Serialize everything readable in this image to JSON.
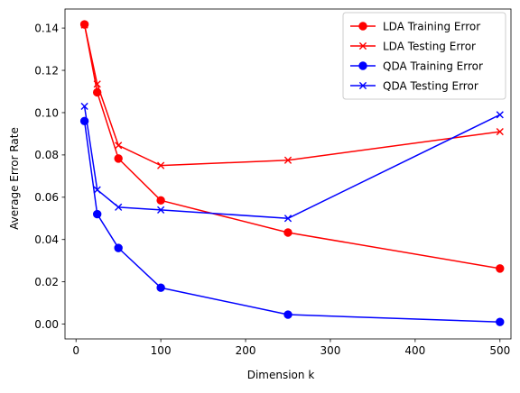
{
  "chart_data": {
    "type": "line",
    "title": "",
    "xlabel": "Dimension k",
    "ylabel": "Average Error Rate",
    "xlim": [
      -13,
      513
    ],
    "ylim": [
      -0.007,
      0.149
    ],
    "x_ticks": [
      0,
      100,
      200,
      300,
      400,
      500
    ],
    "y_ticks": [
      0.0,
      0.02,
      0.04,
      0.06,
      0.08,
      0.1,
      0.12,
      0.14
    ],
    "x_tick_labels": [
      "0",
      "100",
      "200",
      "300",
      "400",
      "500"
    ],
    "y_tick_labels": [
      "0.00",
      "0.02",
      "0.04",
      "0.06",
      "0.08",
      "0.10",
      "0.12",
      "0.14"
    ],
    "grid": false,
    "legend_position": "top-right",
    "x": [
      10,
      25,
      50,
      100,
      250,
      500
    ],
    "series": [
      {
        "name": "LDA Training Error",
        "color": "#ff0000",
        "marker": "circle",
        "values": [
          0.1417,
          0.1096,
          0.0783,
          0.0585,
          0.0433,
          0.0263
        ]
      },
      {
        "name": "LDA Testing Error",
        "color": "#ff0000",
        "marker": "x",
        "values": [
          0.1415,
          0.1135,
          0.0845,
          0.075,
          0.0775,
          0.091
        ]
      },
      {
        "name": "QDA Training Error",
        "color": "#0000ff",
        "marker": "circle",
        "values": [
          0.096,
          0.052,
          0.036,
          0.0172,
          0.0045,
          0.001
        ]
      },
      {
        "name": "QDA Testing Error",
        "color": "#0000ff",
        "marker": "x",
        "values": [
          0.103,
          0.0635,
          0.0553,
          0.054,
          0.05,
          0.099
        ]
      }
    ]
  }
}
